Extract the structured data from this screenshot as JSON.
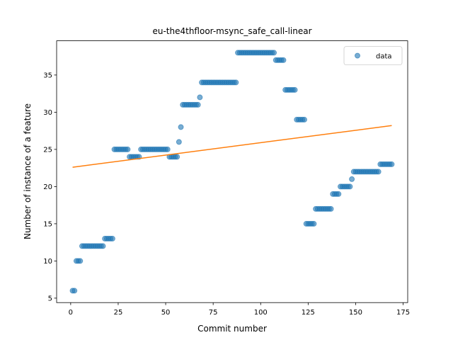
{
  "chart_data": {
    "type": "scatter",
    "title": "eu-the4thfloor-msync_safe_call-linear",
    "xlabel": "Commit number",
    "ylabel": "Number of instance of a feature",
    "xlim": [
      -7.4,
      177.4
    ],
    "ylim": [
      4.4,
      39.6
    ],
    "xticks": [
      0,
      25,
      50,
      75,
      100,
      125,
      150,
      175
    ],
    "yticks": [
      5,
      10,
      15,
      20,
      25,
      30,
      35
    ],
    "legend": "upper right",
    "series": [
      {
        "name": "data",
        "color": "#1f77b4",
        "x": [
          1,
          2,
          3,
          4,
          5,
          6,
          7,
          8,
          9,
          10,
          11,
          12,
          13,
          14,
          15,
          16,
          17,
          18,
          19,
          20,
          21,
          22,
          23,
          24,
          25,
          26,
          27,
          28,
          29,
          30,
          31,
          32,
          33,
          34,
          35,
          36,
          37,
          38,
          39,
          40,
          41,
          42,
          43,
          44,
          45,
          46,
          47,
          48,
          49,
          50,
          51,
          52,
          53,
          54,
          55,
          56,
          57,
          58,
          59,
          60,
          61,
          62,
          63,
          64,
          65,
          66,
          67,
          68,
          69,
          70,
          71,
          72,
          73,
          74,
          75,
          76,
          77,
          78,
          79,
          80,
          81,
          82,
          83,
          84,
          85,
          86,
          87,
          88,
          89,
          90,
          91,
          92,
          93,
          94,
          95,
          96,
          97,
          98,
          99,
          100,
          101,
          102,
          103,
          104,
          105,
          106,
          107,
          108,
          109,
          110,
          111,
          112,
          113,
          114,
          115,
          116,
          117,
          118,
          119,
          120,
          121,
          122,
          123,
          124,
          125,
          126,
          127,
          128,
          129,
          130,
          131,
          132,
          133,
          134,
          135,
          136,
          137,
          138,
          139,
          140,
          141,
          142,
          143,
          144,
          145,
          146,
          147,
          148,
          149,
          150,
          151,
          152,
          153,
          154,
          155,
          156,
          157,
          158,
          159,
          160,
          161,
          162,
          163,
          164,
          165,
          166,
          167,
          168,
          169
        ],
        "values": [
          6,
          6,
          10,
          10,
          10,
          12,
          12,
          12,
          12,
          12,
          12,
          12,
          12,
          12,
          12,
          12,
          12,
          13,
          13,
          13,
          13,
          13,
          25,
          25,
          25,
          25,
          25,
          25,
          25,
          25,
          24,
          24,
          24,
          24,
          24,
          24,
          25,
          25,
          25,
          25,
          25,
          25,
          25,
          25,
          25,
          25,
          25,
          25,
          25,
          25,
          25,
          24,
          24,
          24,
          24,
          24,
          26,
          28,
          31,
          31,
          31,
          31,
          31,
          31,
          31,
          31,
          31,
          32,
          34,
          34,
          34,
          34,
          34,
          34,
          34,
          34,
          34,
          34,
          34,
          34,
          34,
          34,
          34,
          34,
          34,
          34,
          34,
          38,
          38,
          38,
          38,
          38,
          38,
          38,
          38,
          38,
          38,
          38,
          38,
          38,
          38,
          38,
          38,
          38,
          38,
          38,
          38,
          37,
          37,
          37,
          37,
          37,
          33,
          33,
          33,
          33,
          33,
          33,
          29,
          29,
          29,
          29,
          29,
          15,
          15,
          15,
          15,
          15,
          17,
          17,
          17,
          17,
          17,
          17,
          17,
          17,
          17,
          19,
          19,
          19,
          19,
          20,
          20,
          20,
          20,
          20,
          20,
          21,
          22,
          22,
          22,
          22,
          22,
          22,
          22,
          22,
          22,
          22,
          22,
          22,
          22,
          22,
          23,
          23,
          23,
          23,
          23,
          23,
          23
        ]
      }
    ],
    "fit_line": {
      "color": "#ff7f0e",
      "x": [
        1,
        169
      ],
      "values": [
        22.6,
        28.2
      ]
    }
  }
}
